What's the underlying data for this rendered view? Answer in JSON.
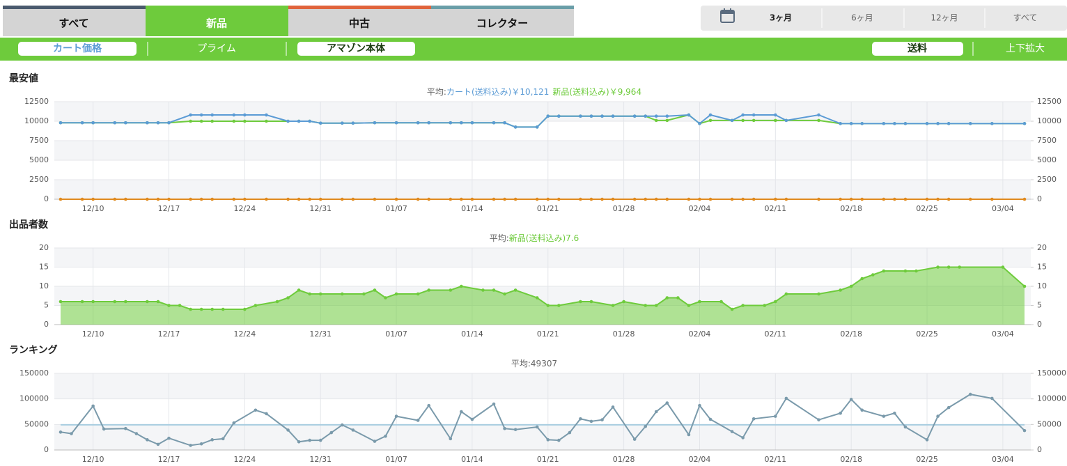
{
  "tabs": [
    {
      "label": "すべて",
      "color": "#4a5a6e"
    },
    {
      "label": "新品",
      "color": "#6ecb3c",
      "active": true
    },
    {
      "label": "中古",
      "color": "#e0643c"
    },
    {
      "label": "コレクター",
      "color": "#6a9ea8"
    }
  ],
  "range_buttons": [
    {
      "label": "3ヶ月",
      "active": true
    },
    {
      "label": "6ヶ月"
    },
    {
      "label": "12ヶ月"
    },
    {
      "label": "すべて"
    }
  ],
  "filters": {
    "cart": "カート価格",
    "prime": "プライム",
    "amazon": "アマゾン本体",
    "shipping": "送料",
    "zoom": "上下拡大"
  },
  "chart_data": [
    {
      "type": "line",
      "title": "最安値",
      "subtitle_prefix": "平均:",
      "x": [
        "12/07",
        "12/09",
        "12/10",
        "12/12",
        "12/13",
        "12/15",
        "12/16",
        "12/17",
        "12/19",
        "12/20",
        "12/21",
        "12/23",
        "12/24",
        "12/26",
        "12/28",
        "12/29",
        "12/30",
        "12/31",
        "01/02",
        "01/03",
        "01/05",
        "01/07",
        "01/09",
        "01/10",
        "01/12",
        "01/13",
        "01/14",
        "01/16",
        "01/17",
        "01/18",
        "01/20",
        "01/21",
        "01/22",
        "01/24",
        "01/25",
        "01/26",
        "01/27",
        "01/29",
        "01/30",
        "01/31",
        "02/01",
        "02/03",
        "02/04",
        "02/05",
        "02/07",
        "02/08",
        "02/09",
        "02/11",
        "02/12",
        "02/15",
        "02/17",
        "02/18",
        "02/19",
        "02/21",
        "02/22",
        "02/23",
        "02/25",
        "02/26",
        "02/27",
        "03/01",
        "03/03",
        "03/06"
      ],
      "series": [
        {
          "name": "新品(送料込み)",
          "average_label": "￥9,964",
          "color": "#6ecb3c",
          "values": [
            9800,
            9800,
            9800,
            9800,
            9800,
            9800,
            9800,
            9800,
            10000,
            10000,
            10000,
            10000,
            10000,
            10000,
            10000,
            10000,
            10000,
            9750,
            9750,
            9750,
            9800,
            9800,
            9800,
            9800,
            9800,
            9800,
            9800,
            9800,
            9800,
            9250,
            9250,
            10650,
            10650,
            10650,
            10650,
            10650,
            10650,
            10650,
            10650,
            10100,
            10100,
            10800,
            9700,
            10100,
            10100,
            10100,
            10100,
            10100,
            10100,
            10100,
            9700,
            9700,
            9700,
            9700,
            9700,
            9700,
            9700,
            9700,
            9700,
            9700,
            9700,
            9700
          ]
        },
        {
          "name": "カート(送料込み)",
          "average_label": "￥10,121",
          "color": "#5b9bd5",
          "values": [
            9800,
            9800,
            9800,
            9800,
            9800,
            9800,
            9800,
            9800,
            10800,
            10800,
            10800,
            10800,
            10800,
            10800,
            10000,
            10000,
            10000,
            9750,
            9750,
            9750,
            9800,
            9800,
            9800,
            9800,
            9800,
            9800,
            9800,
            9800,
            9800,
            9250,
            9250,
            10650,
            10650,
            10650,
            10650,
            10650,
            10650,
            10650,
            10650,
            10650,
            10650,
            10800,
            9700,
            10800,
            10100,
            10800,
            10800,
            10800,
            10100,
            10800,
            9700,
            9700,
            9700,
            9700,
            9700,
            9700,
            9700,
            9700,
            9700,
            9700,
            9700,
            9700
          ]
        },
        {
          "color": "#e08a1e",
          "values": [
            0,
            0,
            0,
            0,
            0,
            0,
            0,
            0,
            0,
            0,
            0,
            0,
            0,
            0,
            0,
            0,
            0,
            0,
            0,
            0,
            0,
            0,
            0,
            0,
            0,
            0,
            0,
            0,
            0,
            0,
            0,
            0,
            0,
            0,
            0,
            0,
            0,
            0,
            0,
            0,
            0,
            0,
            0,
            0,
            0,
            0,
            0,
            0,
            0,
            0,
            0,
            0,
            0,
            0,
            0,
            0,
            0,
            0,
            0,
            0,
            0,
            0
          ]
        }
      ],
      "xlim": [
        "12/07",
        "03/06"
      ],
      "xticks": [
        "12/10",
        "12/17",
        "12/24",
        "12/31",
        "01/07",
        "01/14",
        "01/21",
        "01/28",
        "02/04",
        "02/11",
        "02/18",
        "02/25",
        "03/04"
      ],
      "ylim": [
        0,
        12500
      ],
      "yticks": [
        0,
        2500,
        5000,
        7500,
        10000,
        12500
      ],
      "y2lim": [
        0,
        12500
      ],
      "y2ticks": [
        0,
        2500,
        5000,
        7500,
        10000,
        12500
      ],
      "grid": true
    },
    {
      "type": "area",
      "title": "出品者数",
      "subtitle_prefix": "平均:",
      "x": [
        "12/07",
        "12/09",
        "12/10",
        "12/12",
        "12/13",
        "12/15",
        "12/16",
        "12/17",
        "12/18",
        "12/19",
        "12/20",
        "12/21",
        "12/22",
        "12/24",
        "12/25",
        "12/27",
        "12/28",
        "12/29",
        "12/30",
        "12/31",
        "01/02",
        "01/04",
        "01/05",
        "01/06",
        "01/07",
        "01/09",
        "01/10",
        "01/12",
        "01/13",
        "01/15",
        "01/16",
        "01/17",
        "01/18",
        "01/20",
        "01/21",
        "01/22",
        "01/24",
        "01/25",
        "01/27",
        "01/28",
        "01/30",
        "01/31",
        "02/01",
        "02/02",
        "02/03",
        "02/04",
        "02/06",
        "02/07",
        "02/08",
        "02/10",
        "02/11",
        "02/12",
        "02/15",
        "02/17",
        "02/18",
        "02/19",
        "02/20",
        "02/21",
        "02/23",
        "02/24",
        "02/26",
        "02/27",
        "02/28",
        "03/04",
        "03/06"
      ],
      "series": [
        {
          "name": "新品(送料込み)",
          "average": 7.6,
          "color": "#6ecb3c",
          "values": [
            6,
            6,
            6,
            6,
            6,
            6,
            6,
            5,
            5,
            4,
            4,
            4,
            4,
            4,
            5,
            6,
            7,
            9,
            8,
            8,
            8,
            8,
            9,
            7,
            8,
            8,
            9,
            9,
            10,
            9,
            9,
            8,
            9,
            7,
            5,
            5,
            6,
            6,
            5,
            6,
            5,
            5,
            7,
            7,
            5,
            6,
            6,
            4,
            5,
            5,
            6,
            8,
            8,
            9,
            10,
            12,
            13,
            14,
            14,
            14,
            15,
            15,
            15,
            15,
            10
          ]
        }
      ],
      "xlim": [
        "12/07",
        "03/06"
      ],
      "xticks": [
        "12/10",
        "12/17",
        "12/24",
        "12/31",
        "01/07",
        "01/14",
        "01/21",
        "01/28",
        "02/04",
        "02/11",
        "02/18",
        "02/25",
        "03/04"
      ],
      "ylim": [
        0,
        20
      ],
      "yticks": [
        0,
        5,
        10,
        15,
        20
      ],
      "y2lim": [
        0,
        20
      ],
      "y2ticks": [
        0,
        5,
        10,
        15,
        20
      ],
      "grid": true
    },
    {
      "type": "line",
      "title": "ランキング",
      "subtitle_prefix": "平均:",
      "average": 49307,
      "average_color": "#a8cde0",
      "x": [
        "12/07",
        "12/08",
        "12/10",
        "12/11",
        "12/13",
        "12/14",
        "12/15",
        "12/16",
        "12/17",
        "12/19",
        "12/20",
        "12/21",
        "12/22",
        "12/23",
        "12/25",
        "12/26",
        "12/28",
        "12/29",
        "12/30",
        "12/31",
        "01/01",
        "01/02",
        "01/03",
        "01/05",
        "01/06",
        "01/07",
        "01/09",
        "01/10",
        "01/12",
        "01/13",
        "01/14",
        "01/16",
        "01/17",
        "01/18",
        "01/20",
        "01/21",
        "01/22",
        "01/23",
        "01/24",
        "01/25",
        "01/26",
        "01/27",
        "01/29",
        "01/30",
        "01/31",
        "02/01",
        "02/03",
        "02/04",
        "02/05",
        "02/07",
        "02/08",
        "02/09",
        "02/11",
        "02/12",
        "02/15",
        "02/17",
        "02/18",
        "02/19",
        "02/21",
        "02/22",
        "02/23",
        "02/25",
        "02/26",
        "02/27",
        "03/01",
        "03/03",
        "03/06"
      ],
      "series": [
        {
          "color": "#7a9aab",
          "values": [
            35000,
            32000,
            86000,
            41000,
            42000,
            32000,
            20000,
            11000,
            23000,
            9000,
            12000,
            20000,
            22000,
            53000,
            78000,
            71000,
            39000,
            16000,
            19000,
            19000,
            34000,
            49000,
            39000,
            17000,
            27000,
            66000,
            58000,
            87000,
            22000,
            75000,
            60000,
            90000,
            42000,
            40000,
            45000,
            20000,
            19000,
            34000,
            61000,
            56000,
            59000,
            84000,
            21000,
            46000,
            75000,
            92000,
            30000,
            87000,
            60000,
            36000,
            24000,
            61000,
            66000,
            101000,
            59000,
            72000,
            99000,
            78000,
            66000,
            72000,
            45000,
            20000,
            66000,
            83000,
            109000,
            101000,
            38000
          ]
        }
      ],
      "xlim": [
        "12/07",
        "03/06"
      ],
      "xticks": [
        "12/10",
        "12/17",
        "12/24",
        "12/31",
        "01/07",
        "01/14",
        "01/21",
        "01/28",
        "02/04",
        "02/11",
        "02/18",
        "02/25",
        "03/04"
      ],
      "ylim": [
        0,
        150000
      ],
      "yticks": [
        0,
        50000,
        100000,
        150000
      ],
      "y2lim": [
        0,
        150000
      ],
      "y2ticks": [
        0,
        50000,
        100000,
        150000
      ],
      "grid": true
    }
  ]
}
